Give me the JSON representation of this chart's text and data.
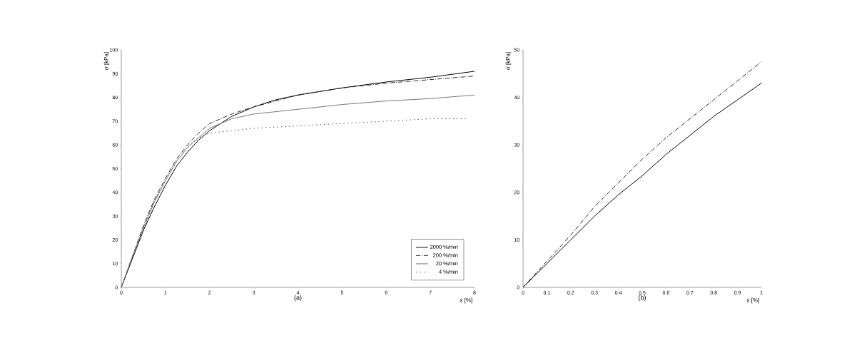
{
  "chart_data": [
    {
      "type": "line",
      "title": "(a)",
      "xlabel": "ε [%]",
      "ylabel": "σ [kPa]",
      "xlim": [
        0,
        8
      ],
      "ylim": [
        0,
        100
      ],
      "xticks": [
        0,
        1,
        2,
        3,
        4,
        5,
        6,
        7,
        8
      ],
      "yticks": [
        0,
        10,
        20,
        30,
        40,
        50,
        60,
        70,
        80,
        90,
        100
      ],
      "legend": "bottom right",
      "grid": false,
      "series": [
        {
          "name": "2000 %/min",
          "color": "#000000",
          "line_style": "solid",
          "x": [
            0,
            0.25,
            0.5,
            0.75,
            1,
            1.25,
            1.5,
            1.75,
            2,
            2.5,
            3,
            3.5,
            4,
            5,
            6,
            7,
            8
          ],
          "values": [
            0,
            12,
            24,
            34,
            43,
            51,
            57,
            62,
            66,
            72,
            76,
            79,
            81,
            84,
            86.5,
            88.5,
            91
          ]
        },
        {
          "name": "200 %/min",
          "color": "#222222",
          "line_style": "dashed",
          "x": [
            0,
            0.25,
            0.5,
            0.75,
            1,
            1.25,
            1.5,
            1.75,
            2,
            2.5,
            3,
            4,
            5,
            6,
            7,
            8
          ],
          "values": [
            0,
            13,
            26,
            37,
            46,
            54,
            60,
            65,
            69,
            73,
            76,
            81,
            84,
            86,
            87.5,
            89
          ]
        },
        {
          "name": "20  %/min",
          "color": "#777777",
          "line_style": "solid",
          "x": [
            0,
            0.25,
            0.5,
            0.75,
            1,
            1.25,
            1.5,
            1.75,
            2,
            2.5,
            3,
            4,
            5,
            6,
            7,
            8
          ],
          "values": [
            0,
            13,
            25,
            36,
            45,
            53,
            59,
            63,
            67,
            71,
            73,
            75,
            77,
            78.5,
            79.5,
            81
          ]
        },
        {
          "name": "4 %/min",
          "color": "#555555",
          "line_style": "dotted",
          "x": [
            0,
            0.25,
            0.5,
            0.75,
            1,
            1.25,
            1.5,
            1.75,
            2,
            2.5,
            3,
            4,
            5,
            6,
            7,
            7.8
          ],
          "values": [
            0,
            12,
            25,
            36,
            45,
            53,
            59,
            63,
            65,
            66,
            67,
            68,
            69,
            70,
            71,
            71
          ]
        }
      ]
    },
    {
      "type": "line",
      "title": "(b)",
      "xlabel": "ε [%]",
      "ylabel": "σ [kPa]",
      "xlim": [
        0,
        1
      ],
      "ylim": [
        0,
        50
      ],
      "xticks": [
        0,
        0.1,
        0.2,
        0.3,
        0.4,
        0.5,
        0.6,
        0.7,
        0.8,
        0.9,
        1
      ],
      "yticks": [
        0,
        10,
        20,
        30,
        40,
        50
      ],
      "grid": false,
      "series": [
        {
          "color": "#222222",
          "line_style": "dashed",
          "x": [
            0,
            0.1,
            0.2,
            0.3,
            0.4,
            0.5,
            0.6,
            0.7,
            0.8,
            0.9,
            1
          ],
          "values": [
            0,
            5.5,
            11,
            17,
            22,
            27,
            31.5,
            35.5,
            39.5,
            43.5,
            47.5
          ]
        },
        {
          "color": "#000000",
          "line_style": "solid",
          "x": [
            0,
            0.1,
            0.2,
            0.3,
            0.4,
            0.5,
            0.6,
            0.7,
            0.8,
            0.9,
            1
          ],
          "values": [
            0,
            5,
            10,
            15,
            19.5,
            23.5,
            28,
            32,
            36,
            39.5,
            43
          ]
        }
      ]
    }
  ]
}
